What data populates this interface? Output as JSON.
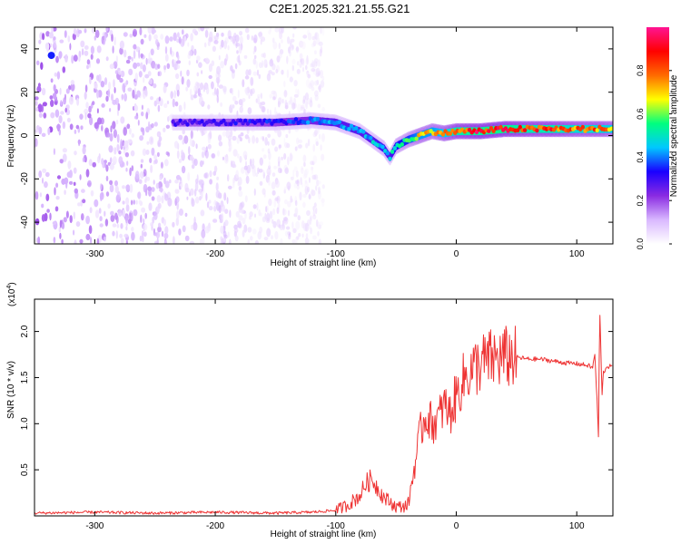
{
  "figure_title": "C2E1.2025.321.21.55.G21",
  "colorbar": {
    "label": "Normalized spectral amplitude",
    "ticks": [
      "0.0",
      "0.2",
      "0.4",
      "0.6",
      "0.8"
    ],
    "tick_values": [
      0.0,
      0.2,
      0.4,
      0.6,
      0.8
    ],
    "range": [
      0,
      1
    ],
    "colormap": [
      "#ffffff",
      "#d9b8ff",
      "#8a2be2",
      "#1a00ff",
      "#00c8ff",
      "#00ff7f",
      "#ffff00",
      "#ff6a00",
      "#ff0000",
      "#ff1493"
    ]
  },
  "chart_data": [
    {
      "type": "heatmap",
      "name": "spectrogram",
      "xlabel": "Height of straight line (km)",
      "ylabel": "Frequency (Hz)",
      "xlim": [
        -350,
        130
      ],
      "ylim": [
        -50,
        50
      ],
      "xticks": [
        -300,
        -200,
        -100,
        0,
        100
      ],
      "xtick_labels": [
        "-300",
        "-200",
        "-100",
        "0",
        "100"
      ],
      "yticks": [
        -40,
        -20,
        0,
        20,
        40
      ],
      "ytick_labels": [
        "-40",
        "-20",
        "0",
        "20",
        "40"
      ],
      "ridge": {
        "x": [
          -235,
          -200,
          -150,
          -120,
          -100,
          -90,
          -80,
          -70,
          -60,
          -55,
          -50,
          -40,
          -30,
          -20,
          -10,
          0,
          20,
          40,
          60,
          80,
          100,
          120,
          130
        ],
        "freq": [
          6,
          6,
          6,
          7,
          6,
          4,
          2,
          -2,
          -6,
          -10,
          -5,
          -2,
          0,
          2,
          1,
          2,
          2,
          3,
          3,
          3,
          3,
          3,
          3
        ],
        "amplitude": [
          0.3,
          0.3,
          0.35,
          0.4,
          0.45,
          0.45,
          0.45,
          0.45,
          0.5,
          0.45,
          0.55,
          0.6,
          0.7,
          0.7,
          0.75,
          0.85,
          0.9,
          0.9,
          0.85,
          0.85,
          0.8,
          0.8,
          0.75
        ]
      },
      "noise_region": {
        "x": [
          -350,
          -110
        ],
        "freq": [
          -50,
          50
        ],
        "amplitude": [
          0.0,
          0.2
        ]
      },
      "hotspot": {
        "x": -336,
        "freq": 37,
        "amplitude": 0.35
      }
    },
    {
      "type": "line",
      "name": "snr",
      "xlabel": "Height of straight line (km)",
      "ylabel": "SNR (10 * v/v)",
      "y_exponent_label": "(x10",
      "y_exponent_power": "4",
      "y_exponent_close": ")",
      "xlim": [
        -350,
        130
      ],
      "ylim": [
        0,
        2.35
      ],
      "xticks": [
        -300,
        -200,
        -100,
        0,
        100
      ],
      "xtick_labels": [
        "-300",
        "-200",
        "-100",
        "0",
        "100"
      ],
      "yticks": [
        0.5,
        1.0,
        1.5,
        2.0
      ],
      "ytick_labels": [
        "0.5",
        "1.0",
        "1.5",
        "2.0"
      ],
      "series": [
        {
          "name": "SNR",
          "color": "#ee3333",
          "x": [
            -350,
            -300,
            -250,
            -200,
            -150,
            -120,
            -100,
            -90,
            -80,
            -75,
            -70,
            -65,
            -60,
            -55,
            -50,
            -45,
            -40,
            -35,
            -30,
            -25,
            -20,
            -15,
            -10,
            -5,
            0,
            5,
            10,
            20,
            30,
            40,
            50,
            60,
            70,
            80,
            90,
            100,
            110,
            113,
            115,
            117,
            118,
            119,
            120,
            121,
            122,
            125,
            130
          ],
          "y": [
            0.03,
            0.04,
            0.03,
            0.04,
            0.03,
            0.04,
            0.06,
            0.12,
            0.22,
            0.35,
            0.4,
            0.3,
            0.2,
            0.15,
            0.1,
            0.1,
            0.12,
            0.5,
            0.9,
            1.1,
            1.0,
            1.05,
            1.2,
            1.1,
            1.3,
            1.45,
            1.55,
            1.65,
            1.7,
            1.72,
            1.72,
            1.7,
            1.7,
            1.68,
            1.66,
            1.65,
            1.63,
            1.6,
            1.75,
            1.2,
            0.85,
            2.25,
            1.8,
            1.3,
            1.55,
            1.62,
            1.62
          ]
        }
      ]
    }
  ]
}
